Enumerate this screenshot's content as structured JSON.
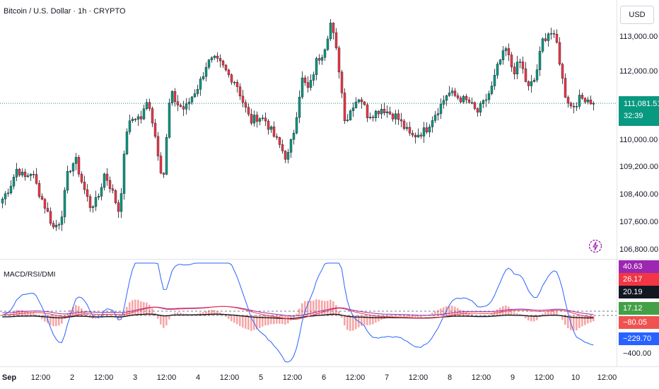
{
  "symbol_title": "Bitcoin / U.S. Dollar · 1h · CRYPTO",
  "currency_button": "USD",
  "indicator_title": "MACD/RSI/DMI",
  "price_axis": {
    "labels": [
      "113,000.00",
      "112,000.00",
      "110,000.00",
      "109,200.00",
      "108,400.00",
      "107,600.00",
      "106,800.00"
    ],
    "values": [
      113000,
      112000,
      110000,
      109200,
      108400,
      107600,
      106800
    ]
  },
  "current_price": {
    "price": "111,081.51",
    "countdown": "32:39",
    "value": 111081.51,
    "color": "#089981"
  },
  "indicator_tags": [
    {
      "text": "40.63",
      "color": "#9c27b0"
    },
    {
      "text": "26.17",
      "color": "#f23645"
    },
    {
      "text": "20.19",
      "color": "#131722"
    },
    {
      "text": "17.12",
      "color": "#43a047"
    },
    {
      "text": "−80.05",
      "color": "#ef5350"
    },
    {
      "text": "−229.70",
      "color": "#2962ff"
    },
    {
      "text": "−400.00",
      "color": ""
    }
  ],
  "time_axis": [
    {
      "text": "Sep",
      "bold": true
    },
    {
      "text": "12:00"
    },
    {
      "text": "2"
    },
    {
      "text": "12:00"
    },
    {
      "text": "3"
    },
    {
      "text": "12:00"
    },
    {
      "text": "4"
    },
    {
      "text": "12:00"
    },
    {
      "text": "5"
    },
    {
      "text": "12:00"
    },
    {
      "text": "6"
    },
    {
      "text": "12:00"
    },
    {
      "text": "7"
    },
    {
      "text": "12:00"
    },
    {
      "text": "8"
    },
    {
      "text": "12:00"
    },
    {
      "text": "9"
    },
    {
      "text": "12:00"
    },
    {
      "text": "10"
    },
    {
      "text": "12:00"
    }
  ],
  "colors": {
    "up": "#089981",
    "down": "#f23645",
    "macd_hist": "#f7a6a6",
    "signal": "#2962ff"
  },
  "chart_data": {
    "type": "candlestick",
    "series_path": [
      108300,
      108650,
      109200,
      108900,
      109100,
      108500,
      108000,
      107450,
      107700,
      109100,
      109450,
      108700,
      108100,
      108250,
      109050,
      108550,
      107900,
      110300,
      110700,
      110650,
      111200,
      110050,
      108800,
      111400,
      111050,
      110900,
      111300,
      111650,
      112250,
      112350,
      112200,
      111900,
      111700,
      111100,
      110550,
      110700,
      110600,
      110200,
      109850,
      109450,
      110350,
      111800,
      111450,
      112300,
      112600,
      113450,
      112300,
      110500,
      111050,
      111300,
      110750,
      110800,
      110950,
      110800,
      110700,
      110400,
      110100,
      110200,
      110300,
      110700,
      111000,
      111400,
      111300,
      111200,
      111100,
      110800,
      111100,
      111500,
      112250,
      112650,
      112000,
      112300,
      111500,
      111800,
      112900,
      113200,
      112800,
      111400,
      110950,
      111200,
      111250,
      111080
    ],
    "price_range": [
      106800,
      113500
    ],
    "macd_range": [
      -400,
      60
    ]
  }
}
